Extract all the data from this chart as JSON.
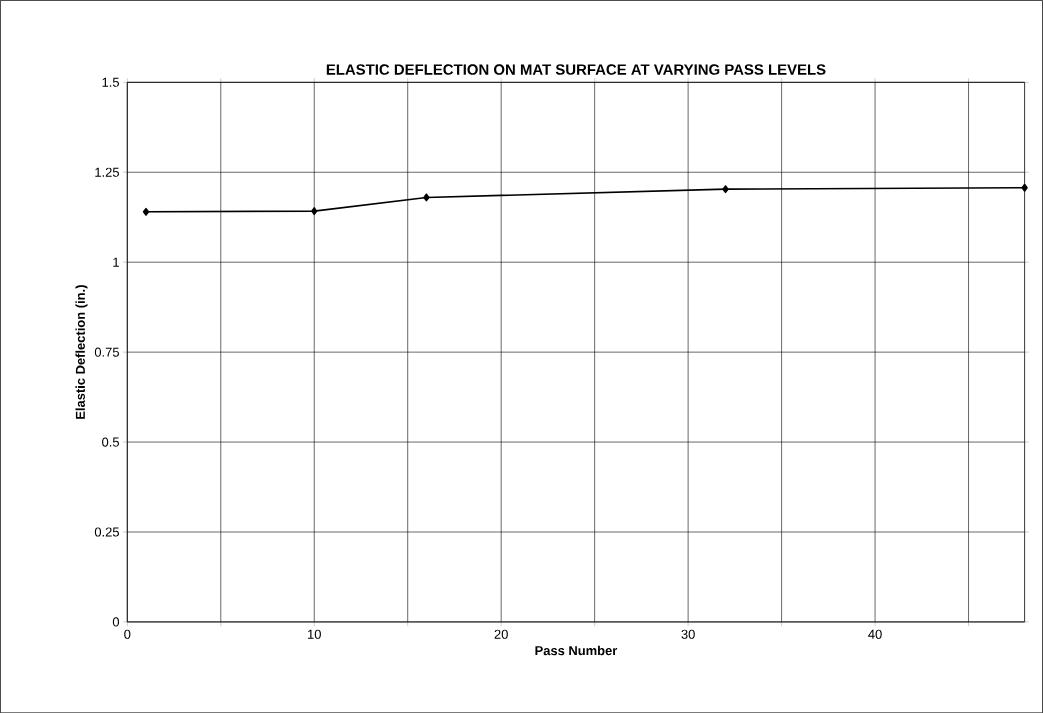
{
  "chart_data": {
    "type": "line",
    "title": "ELASTIC DEFLECTION ON MAT SURFACE AT VARYING PASS LEVELS",
    "xlabel": "Pass Number",
    "ylabel": "Elastic Deflection (in.)",
    "x": [
      1,
      10,
      16,
      32,
      48
    ],
    "values": [
      1.14,
      1.142,
      1.18,
      1.203,
      1.207
    ],
    "color": "#000000",
    "marker": "diamond",
    "line_style": "solid",
    "xlim": [
      0,
      48
    ],
    "xticks": [
      0,
      {
        "value": 5,
        "label": null
      },
      10,
      {
        "value": 15,
        "label": null
      },
      20,
      {
        "value": 25,
        "label": null
      },
      30,
      {
        "value": 35,
        "label": null
      },
      40,
      {
        "value": 45,
        "label": null
      }
    ],
    "ylim": [
      0,
      1.5
    ],
    "yticks": [
      0,
      0.25,
      0.5,
      0.75,
      1,
      1.25,
      1.5
    ],
    "grid": true
  }
}
